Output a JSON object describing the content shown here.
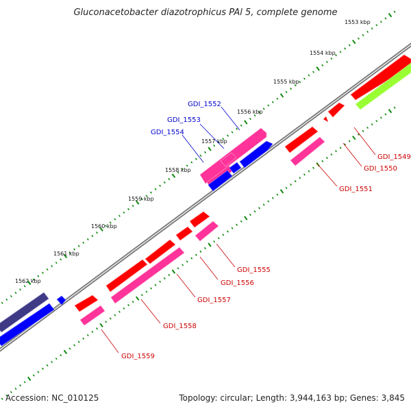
{
  "title": "Gluconacetobacter diazotrophicus PAl 5, complete genome",
  "footer": {
    "accession": "Accession: NC_010125",
    "summary": "Topology: circular; Length: 3,944,163 bp; Genes: 3,845"
  },
  "ticks": [
    "1553 kbp",
    "1554 kbp",
    "1555 kbp",
    "1556 kbp",
    "1557 kbp",
    "1558 kbp",
    "1559 kbp",
    "1560 kbp",
    "1561 kbp",
    "1562 kbp"
  ],
  "gene_labels_forward": [
    "GDI_1552",
    "GDI_1553",
    "GDI_1554"
  ],
  "gene_labels_reverse": [
    "GDI_1549",
    "GDI_1550",
    "GDI_1551",
    "GDI_1555",
    "GDI_1556",
    "GDI_1557",
    "GDI_1558",
    "GDI_1559"
  ],
  "colors": {
    "red": "#ff0000",
    "magenta": "#ff3399",
    "blue": "#0000ff",
    "lime": "#99ff33",
    "purple": "#3f3a85",
    "backbone": "#7f7f7f",
    "tick": "#0a8a0a",
    "label_blue": "#0000cc",
    "label_red": "#cc0000"
  }
}
